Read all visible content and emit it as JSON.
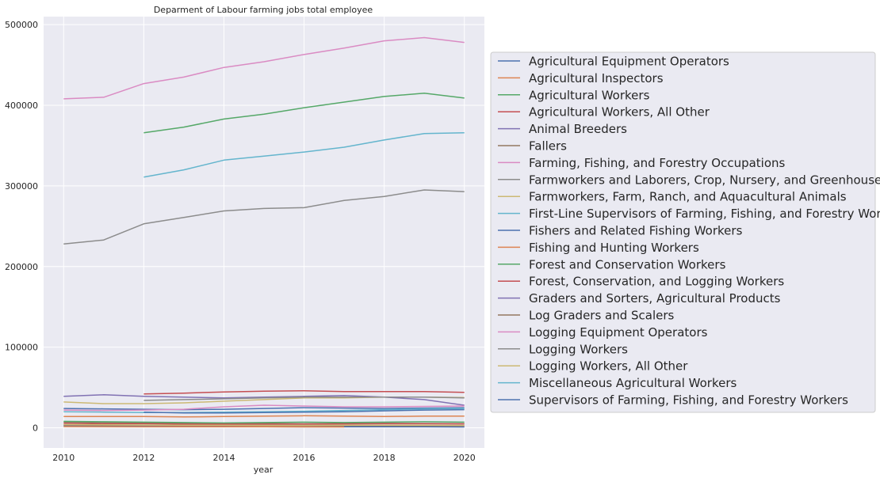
{
  "chart_data": {
    "type": "line",
    "title": "Deparment of Labour farming jobs total employee",
    "xlabel": "year",
    "ylabel": "",
    "xlim": [
      2009.5,
      2020.5
    ],
    "ylim": [
      -25000,
      510000
    ],
    "x_ticks": [
      "2010",
      "2012",
      "2014",
      "2016",
      "2018",
      "2020"
    ],
    "y_ticks": [
      "0",
      "100000",
      "200000",
      "300000",
      "400000",
      "500000"
    ],
    "x_tick_values": [
      2010,
      2012,
      2014,
      2016,
      2018,
      2020
    ],
    "y_tick_values": [
      0,
      100000,
      200000,
      300000,
      400000,
      500000
    ],
    "grid": true,
    "legend_position": "right",
    "series": [
      {
        "name": "Agricultural Equipment Operators",
        "color": "#4c72b0",
        "x": [
          2010,
          2011,
          2012,
          2013,
          2014,
          2015,
          2016,
          2017,
          2018,
          2019,
          2020
        ],
        "y": [
          24000,
          23500,
          23000,
          22500,
          23000,
          24000,
          25000,
          24500,
          24000,
          24500,
          25000
        ]
      },
      {
        "name": "Agricultural Inspectors",
        "color": "#dd8452",
        "x": [
          2010,
          2011,
          2012,
          2013,
          2014,
          2015,
          2016,
          2017,
          2018,
          2019,
          2020
        ],
        "y": [
          14000,
          14000,
          14000,
          13500,
          14000,
          14500,
          15000,
          14500,
          14000,
          14500,
          14500
        ]
      },
      {
        "name": "Agricultural Workers",
        "color": "#55a868",
        "x": [
          2012,
          2013,
          2014,
          2015,
          2016,
          2017,
          2018,
          2019,
          2020
        ],
        "y": [
          366000,
          373000,
          383000,
          389000,
          397000,
          404000,
          411000,
          415000,
          409000
        ]
      },
      {
        "name": "Agricultural Workers, All Other",
        "color": "#c44e52",
        "x": [
          2012,
          2013,
          2014,
          2015,
          2016,
          2017,
          2018,
          2019,
          2020
        ],
        "y": [
          42000,
          43000,
          44500,
          45500,
          46000,
          45000,
          45000,
          45000,
          44000
        ]
      },
      {
        "name": "Animal Breeders",
        "color": "#8172b3",
        "x": [
          2010,
          2011,
          2012,
          2013,
          2014,
          2015,
          2016,
          2017,
          2018,
          2019,
          2020
        ],
        "y": [
          3000,
          2800,
          2500,
          2300,
          2200,
          2000,
          2000,
          2100,
          2000,
          1900,
          1800
        ]
      },
      {
        "name": "Fallers",
        "color": "#937860",
        "x": [
          2010,
          2011,
          2012,
          2013,
          2014,
          2015,
          2016,
          2017,
          2018,
          2019,
          2020
        ],
        "y": [
          7000,
          6500,
          6000,
          5500,
          5500,
          5300,
          5000,
          5200,
          5500,
          5300,
          5000
        ]
      },
      {
        "name": "Farming, Fishing, and Forestry Occupations",
        "color": "#da8bc3",
        "x": [
          2010,
          2011,
          2012,
          2013,
          2014,
          2015,
          2016,
          2017,
          2018,
          2019,
          2020
        ],
        "y": [
          408000,
          410000,
          427000,
          435000,
          447000,
          454000,
          463000,
          471000,
          480000,
          484000,
          478000
        ]
      },
      {
        "name": "Farmworkers and Laborers, Crop, Nursery, and Greenhouse",
        "color": "#8c8c8c",
        "x": [
          2010,
          2011,
          2012,
          2013,
          2014,
          2015,
          2016,
          2017,
          2018,
          2019,
          2020
        ],
        "y": [
          228000,
          233000,
          253000,
          261000,
          269000,
          272000,
          273000,
          282000,
          287000,
          295000,
          293000
        ]
      },
      {
        "name": "Farmworkers, Farm, Ranch, and Aquacultural Animals",
        "color": "#ccb974",
        "x": [
          2010,
          2011,
          2012,
          2013,
          2014,
          2015,
          2016,
          2017,
          2018,
          2019,
          2020
        ],
        "y": [
          32000,
          30000,
          30000,
          31000,
          33000,
          35000,
          37000,
          37000,
          38000,
          38000,
          37500
        ]
      },
      {
        "name": "First-Line Supervisors of Farming, Fishing, and Forestry Workers",
        "color": "#64b5cd",
        "x": [
          2012,
          2013,
          2014,
          2015,
          2016,
          2017,
          2018,
          2019,
          2020
        ],
        "y": [
          311000,
          320000,
          332000,
          337000,
          342000,
          348000,
          357000,
          365000,
          366000
        ]
      },
      {
        "name": "Fishers and Related Fishing Workers",
        "color": "#4c72b0",
        "x": [
          2010,
          2011,
          2012,
          2013,
          2014,
          2015,
          2016,
          2017,
          2018,
          2019,
          2020
        ],
        "y": [
          2000,
          1800,
          1500,
          1400,
          1300,
          1200,
          1100,
          1200,
          1300,
          1200,
          1000
        ]
      },
      {
        "name": "Fishing and Hunting Workers",
        "color": "#dd8452",
        "x": [
          2010,
          2011,
          2012,
          2013,
          2014,
          2015,
          2016,
          2017
        ],
        "y": [
          1500,
          1400,
          1300,
          1300,
          1200,
          1200,
          1100,
          1000
        ]
      },
      {
        "name": "Forest and Conservation Workers",
        "color": "#55a868",
        "x": [
          2010,
          2011,
          2012,
          2013,
          2014,
          2015,
          2016,
          2017,
          2018,
          2019,
          2020
        ],
        "y": [
          8000,
          7500,
          7000,
          6500,
          6000,
          6500,
          7000,
          6500,
          7000,
          7500,
          7000
        ]
      },
      {
        "name": "Forest, Conservation, and Logging Workers",
        "color": "#c44e52",
        "x": [
          2010,
          2011,
          2012,
          2013,
          2014,
          2015,
          2016,
          2017,
          2018,
          2019,
          2020
        ],
        "y": [
          5500,
          5000,
          5000,
          4500,
          4500,
          4500,
          4500,
          4800,
          5000,
          5000,
          4800
        ]
      },
      {
        "name": "Graders and Sorters, Agricultural Products",
        "color": "#8172b3",
        "x": [
          2010,
          2011,
          2012,
          2013,
          2014,
          2015,
          2016,
          2017,
          2018,
          2019,
          2020
        ],
        "y": [
          39000,
          41000,
          39000,
          38000,
          37000,
          38000,
          39000,
          40000,
          38000,
          35000,
          28000
        ]
      },
      {
        "name": "Log Graders and Scalers",
        "color": "#937860",
        "x": [
          2010,
          2011,
          2012,
          2013,
          2014,
          2015,
          2016,
          2017,
          2018,
          2019,
          2020
        ],
        "y": [
          3500,
          3300,
          3200,
          3000,
          3000,
          3000,
          2900,
          2800,
          2700,
          2600,
          2500
        ]
      },
      {
        "name": "Logging Equipment Operators",
        "color": "#da8bc3",
        "x": [
          2010,
          2011,
          2012,
          2013,
          2014,
          2015,
          2016,
          2017,
          2018,
          2019,
          2020
        ],
        "y": [
          22000,
          21500,
          22000,
          23000,
          26000,
          28000,
          27000,
          26000,
          26000,
          26500,
          27000
        ]
      },
      {
        "name": "Logging Workers",
        "color": "#8c8c8c",
        "x": [
          2012,
          2013,
          2014,
          2015,
          2016,
          2017,
          2018,
          2019,
          2020
        ],
        "y": [
          34000,
          35000,
          36000,
          37000,
          38000,
          38000,
          38000,
          38000,
          37000
        ]
      },
      {
        "name": "Logging Workers, All Other",
        "color": "#ccb974",
        "x": [
          2010,
          2011,
          2012,
          2013,
          2014,
          2015,
          2016,
          2017,
          2018,
          2019,
          2020
        ],
        "y": [
          4000,
          3800,
          3500,
          3300,
          3200,
          3000,
          3000,
          3200,
          3300,
          3200,
          3000
        ]
      },
      {
        "name": "Miscellaneous Agricultural Workers",
        "color": "#64b5cd",
        "x": [
          2010,
          2011,
          2012,
          2013,
          2014,
          2015,
          2016,
          2017,
          2018,
          2019,
          2020
        ],
        "y": [
          20000,
          19500,
          19000,
          19000,
          19500,
          20000,
          20500,
          21500,
          22500,
          23500,
          24000
        ]
      },
      {
        "name": "Supervisors of Farming, Fishing, and Forestry Workers",
        "color": "#4c72b0",
        "x": [
          2012,
          2013,
          2014,
          2015,
          2016,
          2017,
          2018,
          2019,
          2020
        ],
        "y": [
          19500,
          18500,
          18500,
          19000,
          19500,
          20000,
          21000,
          22000,
          22500
        ]
      }
    ]
  }
}
